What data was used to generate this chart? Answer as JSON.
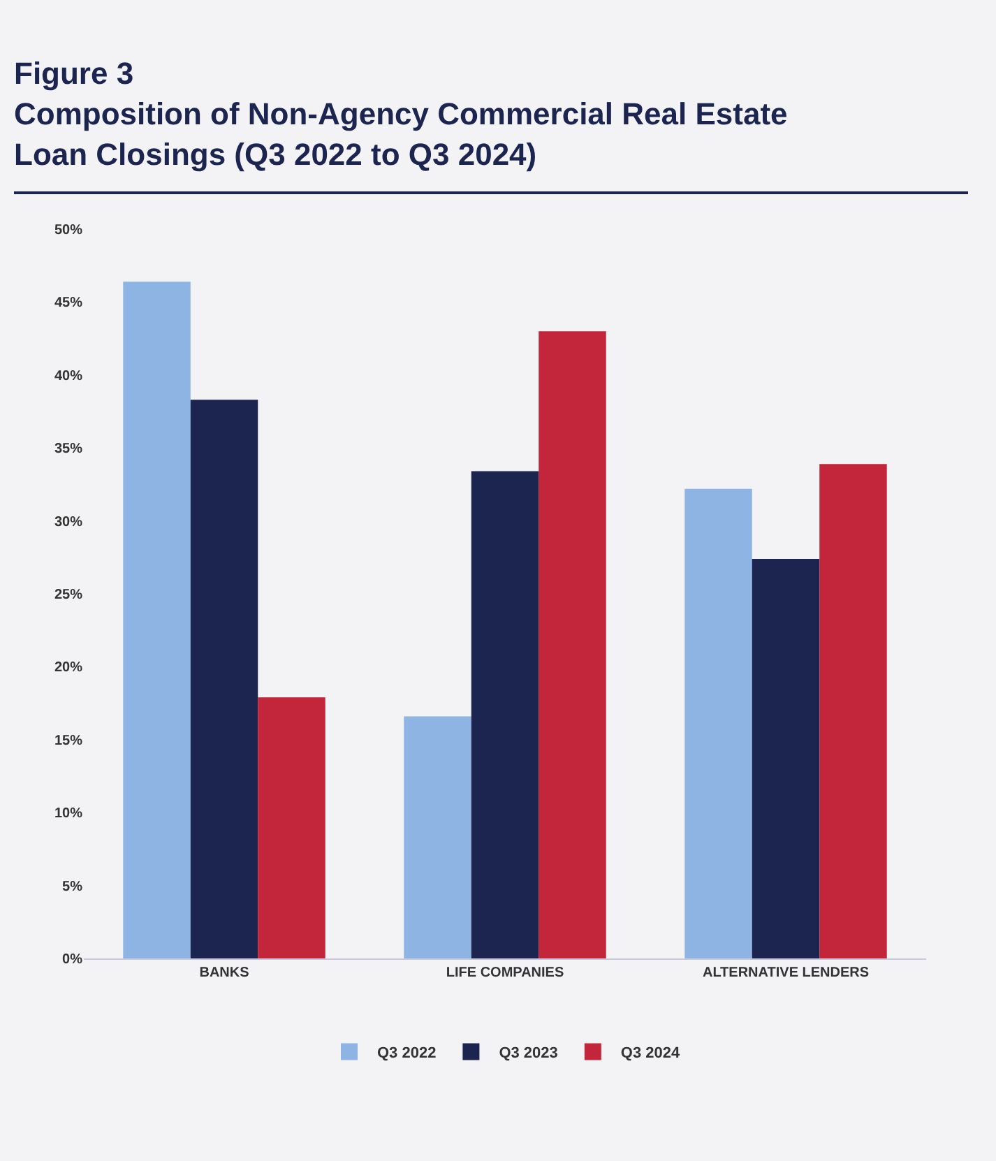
{
  "chart_data": {
    "type": "bar",
    "title": "Figure 3",
    "subtitle": "Composition of Non-Agency Commercial Real Estate Loan Closings (Q3 2022 to Q3 2024)",
    "categories": [
      "BANKS",
      "LIFE COMPANIES",
      "ALTERNATIVE LENDERS"
    ],
    "series": [
      {
        "name": "Q3 2022",
        "color": "#8db4e2",
        "values": [
          46.4,
          16.6,
          32.2
        ]
      },
      {
        "name": "Q3 2023",
        "color": "#1b2550",
        "values": [
          38.3,
          33.4,
          27.4
        ]
      },
      {
        "name": "Q3 2024",
        "color": "#c3253a",
        "values": [
          17.9,
          43.0,
          33.9
        ]
      }
    ],
    "ylim": [
      0,
      50
    ],
    "yticks": [
      {
        "value": 0,
        "label": "0%"
      },
      {
        "value": 5,
        "label": "5%"
      },
      {
        "value": 10,
        "label": "10%"
      },
      {
        "value": 15,
        "label": "15%"
      },
      {
        "value": 20,
        "label": "20%"
      },
      {
        "value": 25,
        "label": "25%"
      },
      {
        "value": 30,
        "label": "30%"
      },
      {
        "value": 35,
        "label": "35%"
      },
      {
        "value": 40,
        "label": "40%"
      },
      {
        "value": 45,
        "label": "45%"
      },
      {
        "value": 50,
        "label": "50%"
      }
    ],
    "grid": false,
    "legend": "bottom"
  }
}
